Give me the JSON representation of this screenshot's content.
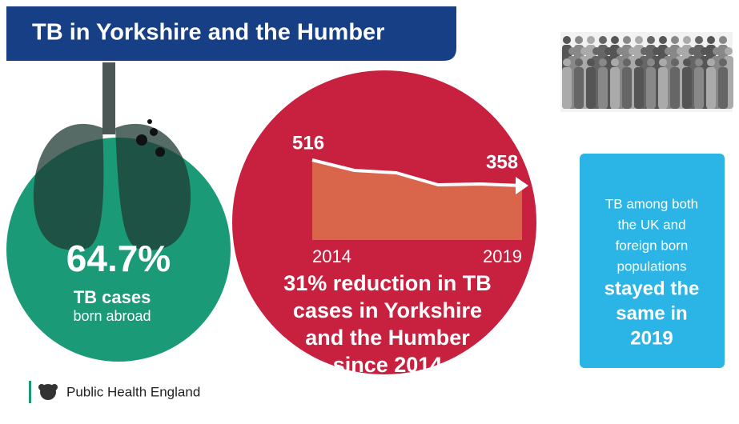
{
  "header": {
    "title": "TB in Yorkshire and the Humber"
  },
  "abroad": {
    "value": "64.7%",
    "line1": "TB cases",
    "line2": "born abroad"
  },
  "chart_data": {
    "type": "area",
    "categories": [
      "2014",
      null,
      null,
      null,
      null,
      "2019"
    ],
    "values": [
      516,
      452,
      437,
      363,
      368,
      358
    ],
    "color": "#d9654b",
    "line_color": "#ffffff"
  },
  "reduction": {
    "lines": [
      "31% reduction in TB",
      "cases in Yorkshire",
      "and the Humber",
      "since 2014"
    ]
  },
  "same": {
    "lines": [
      "TB among both",
      "the UK and",
      "foreign born",
      "populations"
    ],
    "bold_lines": [
      "stayed the",
      "same in",
      "2019"
    ]
  },
  "logo": {
    "text": "Public Health England"
  }
}
